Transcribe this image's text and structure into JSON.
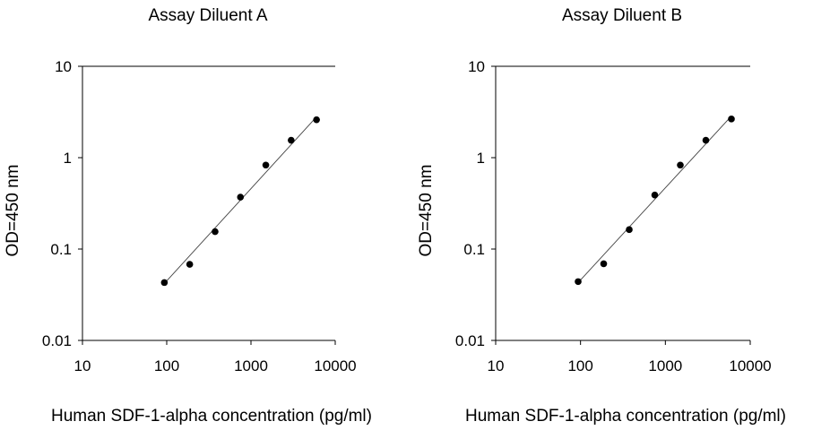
{
  "chart_data": [
    {
      "type": "scatter",
      "title": "Assay Diluent A",
      "xlabel": "Human SDF-1-alpha  concentration (pg/ml)",
      "ylabel": "OD=450 nm",
      "xscale": "log",
      "yscale": "log",
      "xlim": [
        10,
        10000
      ],
      "ylim": [
        0.01,
        10
      ],
      "xticks": [
        "10",
        "100",
        "1000",
        "10000"
      ],
      "yticks": [
        "0.01",
        "0.1",
        "1",
        "10"
      ],
      "grid": false,
      "series": [
        {
          "x": [
            93.75,
            187.5,
            375,
            750,
            1500,
            3000,
            6000
          ],
          "y": [
            0.043,
            0.068,
            0.155,
            0.37,
            0.83,
            1.55,
            2.6
          ]
        }
      ],
      "fit": {
        "x": [
          93.75,
          6000
        ],
        "y": [
          0.042,
          2.8
        ]
      }
    },
    {
      "type": "scatter",
      "title": "Assay Diluent B",
      "xlabel": "Human SDF-1-alpha  concentration (pg/ml)",
      "ylabel": "OD=450 nm",
      "xscale": "log",
      "yscale": "log",
      "xlim": [
        10,
        10000
      ],
      "ylim": [
        0.01,
        10
      ],
      "xticks": [
        "10",
        "100",
        "1000",
        "10000"
      ],
      "yticks": [
        "0.01",
        "0.1",
        "1",
        "10"
      ],
      "grid": false,
      "series": [
        {
          "x": [
            93.75,
            187.5,
            375,
            750,
            1500,
            3000,
            6000
          ],
          "y": [
            0.044,
            0.069,
            0.163,
            0.39,
            0.83,
            1.55,
            2.65
          ]
        }
      ],
      "fit": {
        "x": [
          93.75,
          6000
        ],
        "y": [
          0.043,
          2.85
        ]
      }
    }
  ]
}
